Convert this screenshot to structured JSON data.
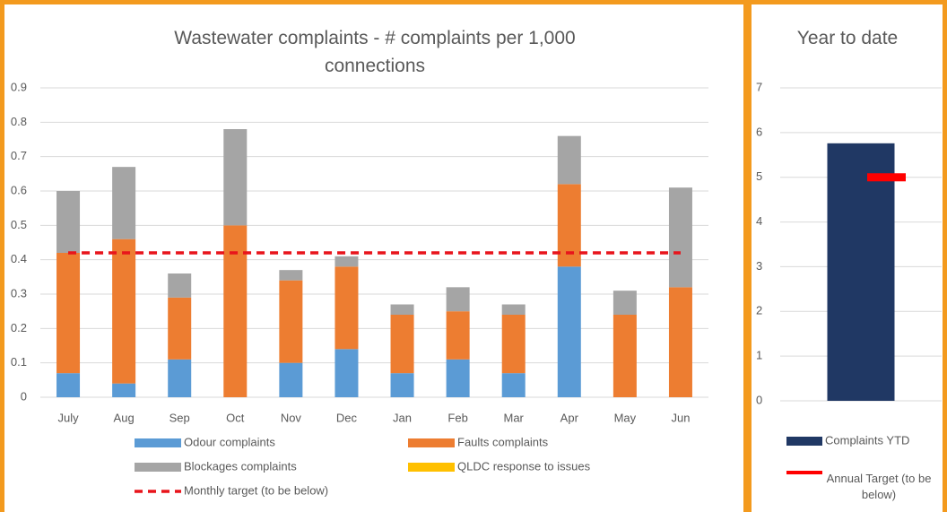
{
  "chart_data": [
    {
      "type": "bar",
      "stacked": true,
      "title": "Wastewater complaints - # complaints per 1,000 connections",
      "categories": [
        "July",
        "Aug",
        "Sep",
        "Oct",
        "Nov",
        "Dec",
        "Jan",
        "Feb",
        "Mar",
        "Apr",
        "May",
        "Jun"
      ],
      "series": [
        {
          "name": "Odour complaints",
          "color": "#5b9bd5",
          "values": [
            0.07,
            0.04,
            0.11,
            0,
            0.1,
            0.14,
            0.07,
            0.11,
            0.07,
            0.38,
            0,
            0
          ]
        },
        {
          "name": "Faults complaints",
          "color": "#ed7d31",
          "values": [
            0.35,
            0.42,
            0.18,
            0.5,
            0.24,
            0.24,
            0.17,
            0.14,
            0.17,
            0.24,
            0.24,
            0.32
          ]
        },
        {
          "name": "Blockages complaints",
          "color": "#a5a5a5",
          "values": [
            0.18,
            0.21,
            0.07,
            0.28,
            0.03,
            0.03,
            0.03,
            0.07,
            0.03,
            0.14,
            0.07,
            0.29
          ]
        },
        {
          "name": "QLDC response to issues",
          "color": "#ffc000",
          "values": [
            0,
            0,
            0,
            0,
            0,
            0,
            0,
            0,
            0,
            0,
            0,
            0
          ]
        },
        {
          "name": "Monthly target (to be below)",
          "color": "#e8141b",
          "type": "line",
          "dashed": true,
          "values": [
            0.42,
            0.42,
            0.42,
            0.42,
            0.42,
            0.42,
            0.42,
            0.42,
            0.42,
            0.42,
            0.42,
            0.42
          ]
        }
      ],
      "ylim": [
        0,
        0.9
      ],
      "yticks": [
        0,
        0.1,
        0.2,
        0.3,
        0.4,
        0.5,
        0.6,
        0.7,
        0.8,
        0.9
      ],
      "grid": true
    },
    {
      "type": "bar",
      "title": "Year to date",
      "categories": [
        null
      ],
      "series": [
        {
          "name": "Complaints YTD",
          "color": "#203864",
          "values": [
            5.76
          ]
        },
        {
          "name": "Annual Target (to be below)",
          "color": "#ff0000",
          "type": "marker",
          "values": [
            5
          ]
        }
      ],
      "ylim": [
        0,
        7
      ],
      "yticks": [
        0,
        1,
        2,
        3,
        4,
        5,
        6,
        7
      ],
      "grid": true
    }
  ]
}
